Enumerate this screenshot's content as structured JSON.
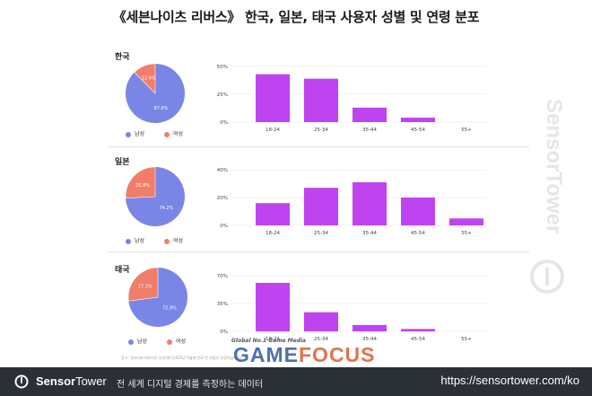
{
  "title": "《세븐나이츠 리버스》 한국, 일본, 태국 사용자 성별 및 연령 분포",
  "colors": {
    "male": "#7a86e6",
    "female": "#f07e6a",
    "bar": "#c043f0"
  },
  "legend": {
    "male": "남성",
    "female": "여성"
  },
  "chart_data": [
    {
      "country": "한국",
      "type": "pie",
      "slices": [
        {
          "name": "남성",
          "value": 87.6,
          "label": "87.6%"
        },
        {
          "name": "여성",
          "value": 12.4,
          "label": "12.4%"
        }
      ]
    },
    {
      "country": "한국",
      "type": "bar",
      "categories": [
        "18-24",
        "25-34",
        "35-44",
        "45-54",
        "55+"
      ],
      "values": [
        43,
        39,
        13,
        4,
        0
      ],
      "ylim": [
        0,
        50
      ],
      "yticks": [
        "0%",
        "25%",
        "50%"
      ]
    },
    {
      "country": "일본",
      "type": "pie",
      "slices": [
        {
          "name": "남성",
          "value": 74.2,
          "label": "74.2%"
        },
        {
          "name": "여성",
          "value": 25.8,
          "label": "25.8%"
        }
      ]
    },
    {
      "country": "일본",
      "type": "bar",
      "categories": [
        "18-24",
        "25-34",
        "35-44",
        "45-54",
        "55+"
      ],
      "values": [
        16,
        27,
        31,
        20,
        5
      ],
      "ylim": [
        0,
        40
      ],
      "yticks": [
        "0%",
        "20%",
        "40%"
      ]
    },
    {
      "country": "태국",
      "type": "pie",
      "slices": [
        {
          "name": "남성",
          "value": 72.9,
          "label": "72.9%"
        },
        {
          "name": "여성",
          "value": 27.1,
          "label": "27.1%"
        }
      ]
    },
    {
      "country": "태국",
      "type": "bar",
      "categories": [
        "18-24",
        "25-34",
        "35-44",
        "45-54",
        "55+"
      ],
      "values": [
        61,
        24,
        8,
        3,
        0
      ],
      "ylim": [
        0,
        70
      ],
      "yticks": [
        "0%",
        "35%",
        "70%"
      ]
    }
  ],
  "source_note": "참고: 센서타워 데이터인 인사이트(2025년 5월에 만료 된 사용자 추정치입니다)",
  "watermark": "SensorTower",
  "overlay": {
    "tag": "Global No.1 Game Media",
    "logo_a": "GAME",
    "logo_b": "FOCUS"
  },
  "footer": {
    "brand_bold": "Sensor",
    "brand_light": "Tower",
    "tagline": "전 세계 디지털 경제를 측정하는 데이터",
    "url": "https://sensortower.com/ko"
  }
}
